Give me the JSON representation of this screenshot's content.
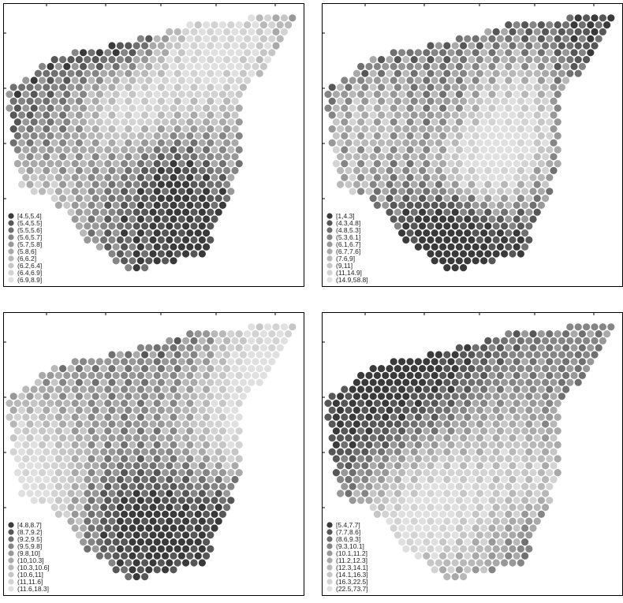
{
  "figure": {
    "panels": [
      {
        "id": "top-left"
      },
      {
        "id": "top-right"
      },
      {
        "id": "bottom-left"
      },
      {
        "id": "bottom-right"
      }
    ]
  },
  "palette": [
    "#3a3a3a",
    "#575757",
    "#707070",
    "#858585",
    "#989898",
    "#a9a9a9",
    "#b8b8b8",
    "#c6c6c6",
    "#d3d3d3",
    "#e0e0e0"
  ],
  "chart_data": [
    {
      "type": "scatter",
      "title": "",
      "grid": false,
      "legend_position": "bottom-left",
      "legend_entries": [
        "[4.5,5.4]",
        "(5.4,5.5]",
        "(5.5,5.6]",
        "(5.6,5.7]",
        "(5.7,5.8]",
        "(5.8,6]",
        "(6,6.2]",
        "(6.2,6.4]",
        "(6.4,6.9]",
        "(6.9,8.9]"
      ]
    },
    {
      "type": "scatter",
      "title": "",
      "grid": false,
      "legend_position": "bottom-left",
      "legend_entries": [
        "[1,4.3]",
        "(4.3,4.8]",
        "(4.8,5.3]",
        "(5.3,6.1]",
        "(6.1,6.7]",
        "(6.7,7.6]",
        "(7.6,9]",
        "(9,11]",
        "(11,14.9]",
        "(14.9,58.8]"
      ]
    },
    {
      "type": "scatter",
      "title": "",
      "grid": false,
      "legend_position": "bottom-left",
      "legend_entries": [
        "[4.8,8.7]",
        "(8.7,9.2]",
        "(9.2,9.5]",
        "(9.5,9.8]",
        "(9.8,10]",
        "(10,10.3]",
        "(10.3,10.6]",
        "(10.6,11]",
        "(11,11.6]",
        "(11.6,18.3]"
      ]
    },
    {
      "type": "scatter",
      "title": "",
      "grid": false,
      "legend_position": "bottom-left",
      "legend_entries": [
        "[5.4,7.7]",
        "(7.7,8.6]",
        "(8.6,9.3]",
        "(9.3,10.1]",
        "(10.1,11.2]",
        "(11.2,12.3]",
        "(12.3,14.1]",
        "(14.1,16.3]",
        "(16.3,22.5]",
        "(22.5,73.7]"
      ]
    }
  ]
}
